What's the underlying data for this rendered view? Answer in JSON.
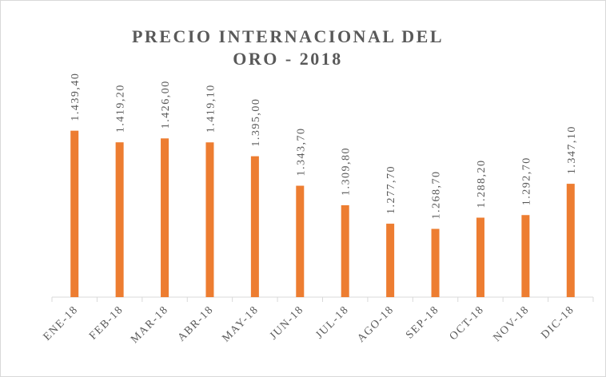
{
  "chart_data": {
    "type": "bar",
    "title": "PRECIO INTERNACIONAL DEL ORO - 2018",
    "categories": [
      "ENE-18",
      "FEB-18",
      "MAR-18",
      "ABR-18",
      "MAY-18",
      "JUN-18",
      "JUL-18",
      "AGO-18",
      "SEP-18",
      "OCT-18",
      "NOV-18",
      "DIC-18"
    ],
    "values": [
      1439.4,
      1419.2,
      1426.0,
      1419.1,
      1395.0,
      1343.7,
      1309.8,
      1277.7,
      1268.7,
      1288.2,
      1292.7,
      1347.1
    ],
    "value_labels": [
      "1.439,40",
      "1.419,20",
      "1.426,00",
      "1.419,10",
      "1.395,00",
      "1.343,70",
      "1.309,80",
      "1.277,70",
      "1.268,70",
      "1.288,20",
      "1.292,70",
      "1.347,10"
    ],
    "color": "#ed7d31",
    "ylim": [
      1150,
      1500
    ]
  }
}
